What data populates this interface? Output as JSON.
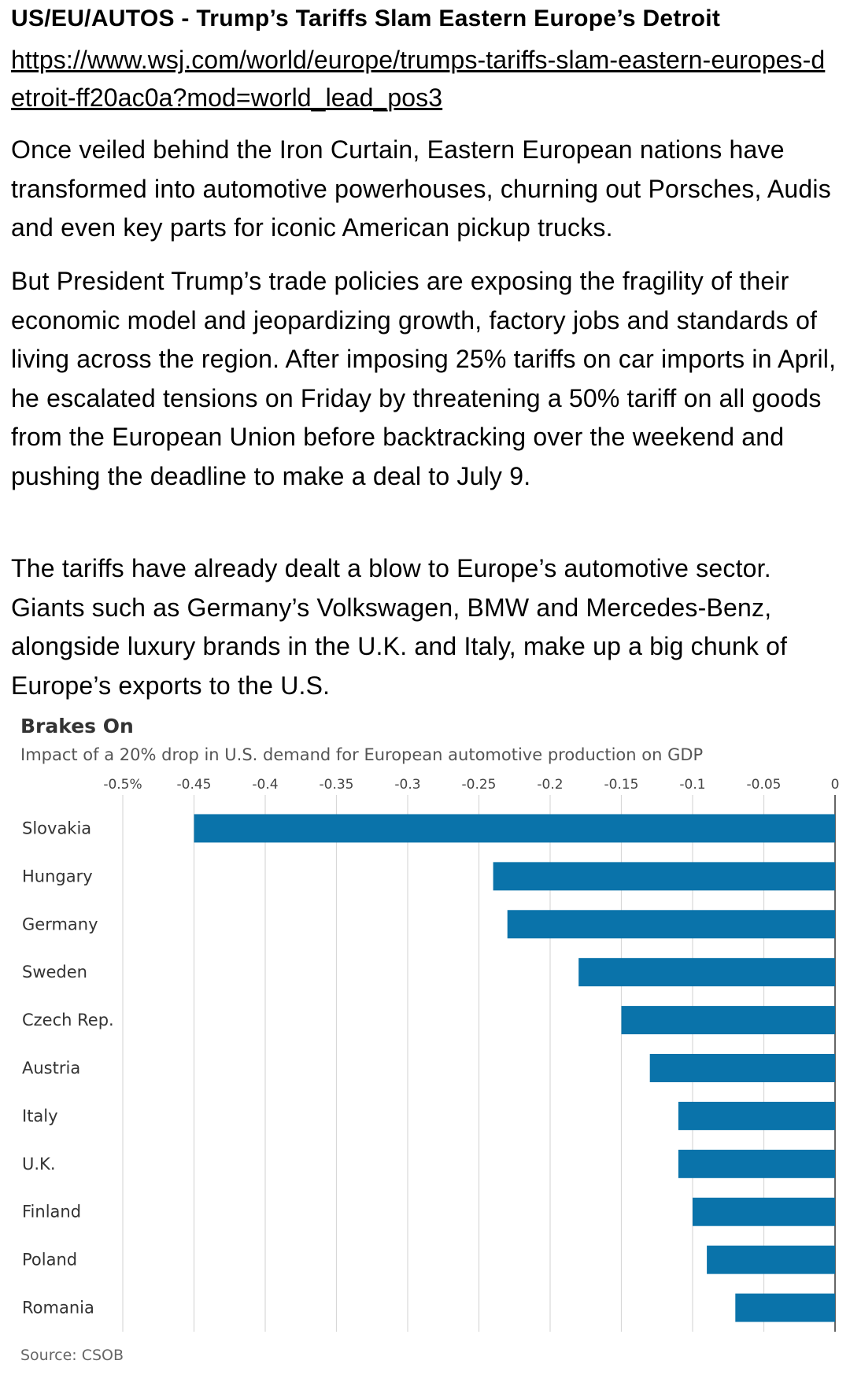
{
  "article": {
    "headline": "US/EU/AUTOS - Trump’s Tariffs Slam Eastern Europe’s Detroit",
    "url": "https://www.wsj.com/world/europe/trumps-tariffs-slam-eastern-europes-detroit-ff20ac0a?mod=world_lead_pos3",
    "paragraphs": [
      "Once veiled behind the Iron Curtain, Eastern European nations have transformed into automotive powerhouses, churning out Porsches, Audis and even key parts for iconic American pickup trucks.",
      "But President Trump’s trade policies are exposing the fragility of their economic model and jeopardizing growth, factory jobs and standards of living across the region. After imposing 25% tariffs on car imports in April, he escalated tensions on Friday by threatening a 50% tariff on all goods from the European Union before backtracking over the weekend and pushing the deadline to make a deal to July 9.",
      "The tariffs have already dealt a blow to Europe’s automotive sector. Giants such as Germany’s Volkswagen, BMW and Mercedes-Benz, alongside luxury brands in the U.K. and Italy, make up a big chunk of Europe’s exports to the U.S."
    ]
  },
  "chart_data": {
    "type": "bar",
    "orientation": "horizontal",
    "title": "Brakes On",
    "subtitle": "Impact of a 20% drop in U.S. demand for European automotive production on GDP",
    "source": "Source: CSOB",
    "categories": [
      "Slovakia",
      "Hungary",
      "Germany",
      "Sweden",
      "Czech Rep.",
      "Austria",
      "Italy",
      "U.K.",
      "Finland",
      "Poland",
      "Romania"
    ],
    "values": [
      -0.45,
      -0.24,
      -0.23,
      -0.18,
      -0.15,
      -0.13,
      -0.11,
      -0.11,
      -0.1,
      -0.09,
      -0.07
    ],
    "x_ticks": [
      -0.5,
      -0.45,
      -0.4,
      -0.35,
      -0.3,
      -0.25,
      -0.2,
      -0.15,
      -0.1,
      -0.05,
      0
    ],
    "x_tick_labels": [
      "-0.5%",
      "-0.45",
      "-0.4",
      "-0.35",
      "-0.3",
      "-0.25",
      "-0.2",
      "-0.15",
      "-0.1",
      "-0.05",
      "0"
    ],
    "xlim": [
      -0.5,
      0
    ],
    "grid": "vertical",
    "tick_position": "top",
    "bar_color": "#0a73aa",
    "grid_color": "#d8d8d8"
  }
}
